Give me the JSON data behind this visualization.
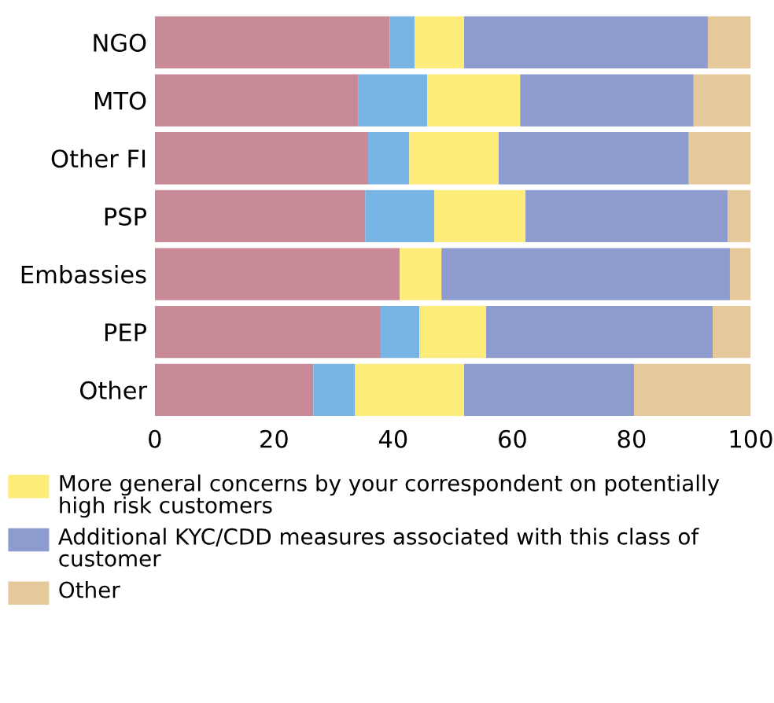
{
  "chart_data": {
    "type": "bar",
    "orientation": "horizontal",
    "stacked": true,
    "categories": [
      "NGO",
      "MTO",
      "Other FI",
      "PSP",
      "Embassies",
      "PEP",
      "Other"
    ],
    "series": [
      {
        "color": "#c98a98",
        "values": [
          39.4,
          34.1,
          35.8,
          35.3,
          41.1,
          37.9,
          26.6
        ]
      },
      {
        "color": "#78b4e4",
        "values": [
          4.2,
          11.6,
          6.9,
          11.6,
          0,
          6.5,
          7.0
        ]
      },
      {
        "name": "More general concerns by your correspondent on potentially high risk customers",
        "color": "#fdeb7a",
        "values": [
          8.3,
          15.6,
          15.0,
          15.3,
          7.0,
          11.2,
          18.3
        ]
      },
      {
        "name": "Additional KYC/CDD measures associated with this class of customer",
        "color": "#8d9bcf",
        "values": [
          40.9,
          29.1,
          31.9,
          33.9,
          48.4,
          38.0,
          28.5
        ]
      },
      {
        "name": "Other",
        "color": "#e6c99b",
        "values": [
          7.2,
          9.6,
          10.4,
          3.9,
          3.5,
          6.4,
          19.6
        ]
      }
    ],
    "xlim": [
      0,
      100
    ],
    "xticks": [
      0,
      20,
      40,
      60,
      80,
      100
    ],
    "grid": false,
    "legend": "bottom"
  }
}
